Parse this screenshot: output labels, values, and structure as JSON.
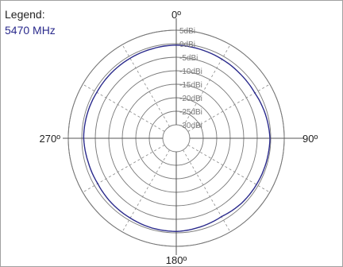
{
  "chart_data": {
    "type": "polar-line",
    "legend_title": "Legend:",
    "legend_placement": "top-left",
    "grid": true,
    "angle_unit": "degrees",
    "angle_labels": [
      "0º",
      "90º",
      "180º",
      "270º"
    ],
    "radial_range": [
      -35,
      5
    ],
    "radial_ticks": [
      {
        "value": 5,
        "label": "5dBi"
      },
      {
        "value": 0,
        "label": "0dBi"
      },
      {
        "value": -5,
        "label": "-5dBi"
      },
      {
        "value": -10,
        "label": "-10dBi"
      },
      {
        "value": -15,
        "label": "-15dBi"
      },
      {
        "value": -20,
        "label": "-20dBi"
      },
      {
        "value": -25,
        "label": "-25dBi"
      },
      {
        "value": -30,
        "label": "-30dBi"
      }
    ],
    "series": [
      {
        "name": "5470 MHz",
        "color": "#2a2a8c",
        "angles": [
          0,
          15,
          30,
          45,
          60,
          75,
          90,
          105,
          120,
          135,
          150,
          165,
          180,
          195,
          210,
          225,
          240,
          255,
          270,
          285,
          300,
          315,
          330,
          345
        ],
        "values": [
          -0.5,
          -0.9,
          -1.2,
          -1.4,
          -1.4,
          -0.8,
          -0.3,
          -0.5,
          -0.7,
          -0.9,
          -1.5,
          -1.0,
          -0.5,
          -0.6,
          -0.9,
          -1.1,
          -1.4,
          -1.2,
          -0.7,
          -0.8,
          -1.0,
          -0.9,
          -0.8,
          -0.7
        ]
      }
    ]
  }
}
